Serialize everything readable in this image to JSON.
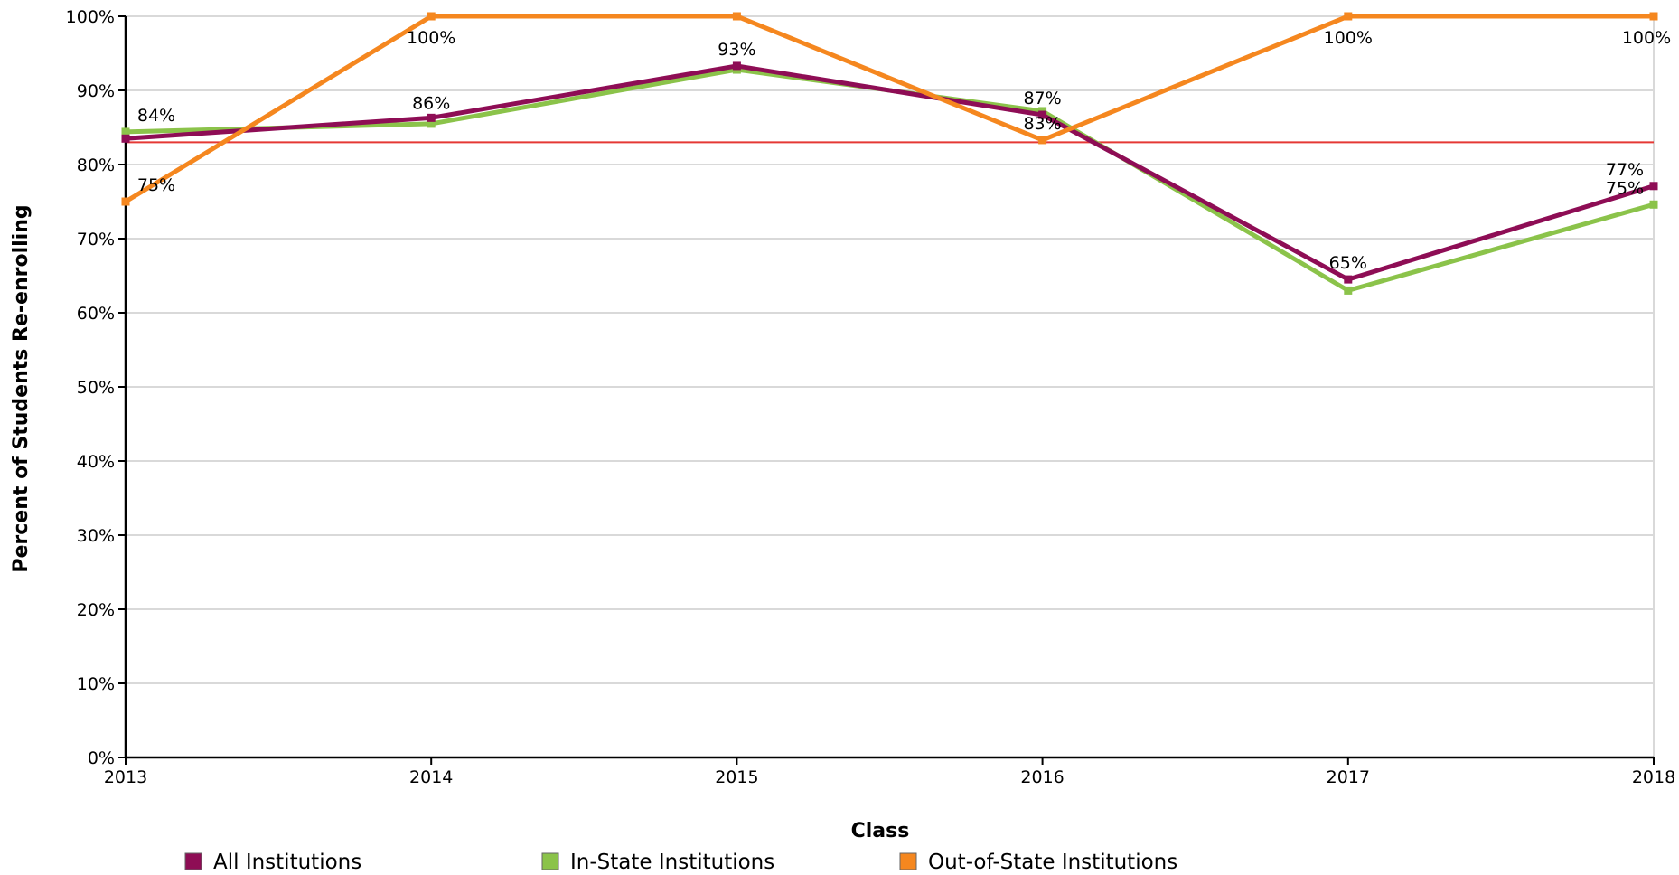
{
  "chart_data": {
    "type": "line",
    "title": "",
    "xlabel": "Class",
    "ylabel": "Percent of Students Re-enrolling",
    "categories": [
      "2013",
      "2014",
      "2015",
      "2016",
      "2017",
      "2018"
    ],
    "ylim": [
      0,
      100
    ],
    "yticks": [
      0,
      10,
      20,
      30,
      40,
      50,
      60,
      70,
      80,
      90,
      100
    ],
    "ytick_labels": [
      "0%",
      "10%",
      "20%",
      "30%",
      "40%",
      "50%",
      "60%",
      "70%",
      "80%",
      "90%",
      "100%"
    ],
    "grid": true,
    "legend_position": "bottom",
    "reference_line": {
      "value": 83,
      "color": "#e53935"
    },
    "series": [
      {
        "name": "All Institutions",
        "color": "#8e0d55",
        "values": [
          83.5,
          86.3,
          93.3,
          86.7,
          64.5,
          77.1
        ],
        "labels": [
          "",
          "86%",
          "93%",
          "87%",
          "65%",
          "77%"
        ]
      },
      {
        "name": "In-State Institutions",
        "color": "#8bc34a",
        "values": [
          84.4,
          85.5,
          92.8,
          87.2,
          63.0,
          74.6
        ],
        "labels": [
          "84%",
          "",
          "",
          "",
          "",
          "75%"
        ]
      },
      {
        "name": "Out-of-State Institutions",
        "color": "#f5871f",
        "values": [
          75.0,
          100.0,
          100.0,
          83.3,
          100.0,
          100.0
        ],
        "labels": [
          "75%",
          "100%",
          "",
          "83%",
          "100%",
          "100%"
        ]
      }
    ]
  }
}
